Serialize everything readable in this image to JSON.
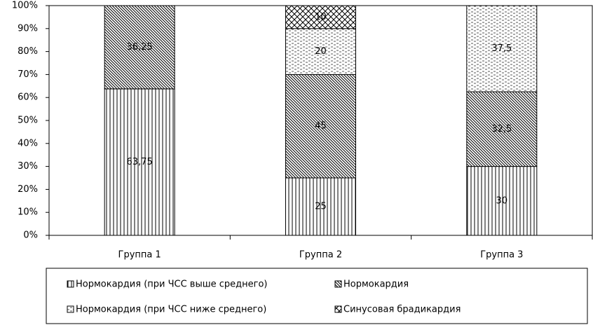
{
  "chart_data": {
    "type": "stacked-bar",
    "categories": [
      "Группа 1",
      "Группа 2",
      "Группа 3"
    ],
    "series": [
      {
        "name": "Нормокардия (при ЧСС выше среднего)",
        "pattern": "vertical",
        "color": "#000000",
        "values": [
          63.75,
          25,
          30
        ],
        "value_labels": [
          "63,75",
          "25",
          "30"
        ]
      },
      {
        "name": "Нормокардия",
        "pattern": "diagonal",
        "color": "#000000",
        "values": [
          36.25,
          45,
          32.5
        ],
        "value_labels": [
          "36,25",
          "45",
          "32,5"
        ]
      },
      {
        "name": "Нормокардия (при ЧСС ниже среднего)",
        "pattern": "horizontal",
        "color": "#000000",
        "values": [
          null,
          20,
          37.5
        ],
        "value_labels": [
          null,
          "20",
          "37,5"
        ]
      },
      {
        "name": "Синусовая брадикардия",
        "pattern": "cross",
        "color": "#000000",
        "values": [
          null,
          10,
          null
        ],
        "value_labels": [
          null,
          "10",
          null
        ]
      }
    ],
    "ylim": [
      0,
      100
    ],
    "yticks": [
      {
        "value": 0,
        "label": "0%"
      },
      {
        "value": 10,
        "label": "10%"
      },
      {
        "value": 20,
        "label": "20%"
      },
      {
        "value": 30,
        "label": "30%"
      },
      {
        "value": 40,
        "label": "40%"
      },
      {
        "value": 50,
        "label": "50%"
      },
      {
        "value": 60,
        "label": "60%"
      },
      {
        "value": 70,
        "label": "70%"
      },
      {
        "value": 80,
        "label": "80%"
      },
      {
        "value": 90,
        "label": "90%"
      },
      {
        "value": 100,
        "label": "100%"
      }
    ],
    "grid": false,
    "legend": "bottom"
  }
}
